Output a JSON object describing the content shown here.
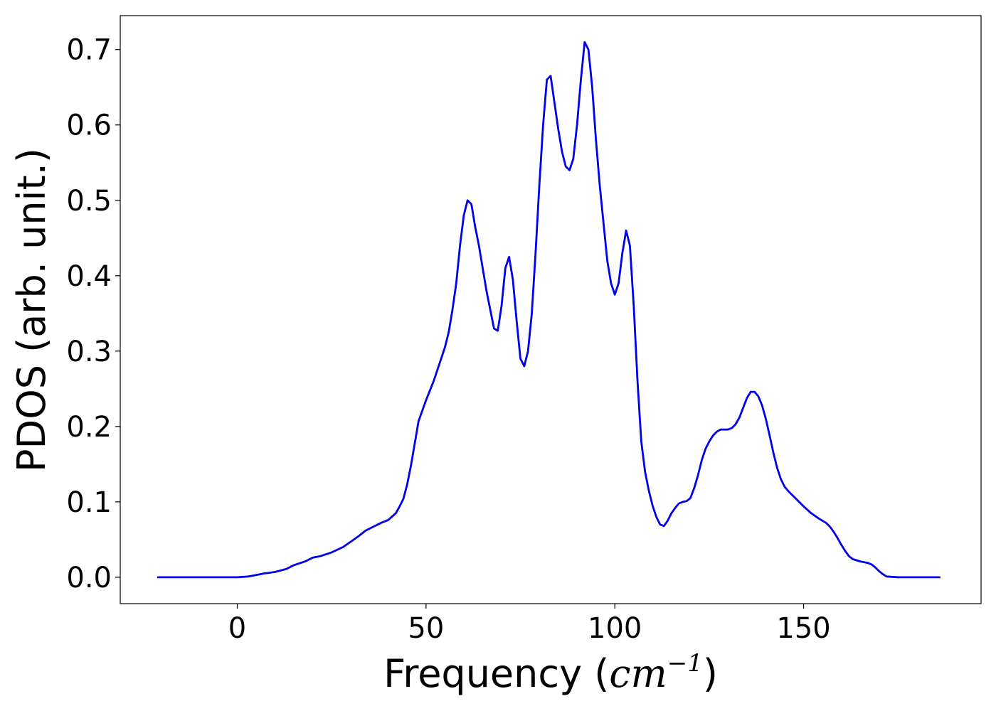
{
  "chart_data": {
    "type": "line",
    "title": "",
    "xlabel": "Frequency (cm⁻¹)",
    "xlabel_parts": {
      "prefix": "Frequency (",
      "math_base": "cm",
      "math_sup": "−1",
      "suffix": ")"
    },
    "ylabel": "PDOS (arb. unit.)",
    "xlim": [
      -31,
      197
    ],
    "ylim": [
      -0.035,
      0.745
    ],
    "xticks": [
      0,
      50,
      100,
      150
    ],
    "xtick_labels": [
      "0",
      "50",
      "100",
      "150"
    ],
    "yticks": [
      0.0,
      0.1,
      0.2,
      0.3,
      0.4,
      0.5,
      0.6,
      0.7
    ],
    "ytick_labels": [
      "0.0",
      "0.1",
      "0.2",
      "0.3",
      "0.4",
      "0.5",
      "0.6",
      "0.7"
    ],
    "grid": false,
    "legend": "none",
    "series": [
      {
        "color": "#0000ee",
        "x": [
          -21,
          0,
          3,
          5,
          7,
          10,
          13,
          15,
          18,
          20,
          22,
          25,
          28,
          30,
          32,
          34,
          36,
          38,
          40,
          42,
          43,
          44,
          45,
          46,
          47,
          48,
          50,
          52,
          54,
          55,
          56,
          57,
          58,
          59,
          60,
          61,
          62,
          63,
          64,
          65,
          66,
          67,
          68,
          69,
          70,
          71,
          72,
          73,
          74,
          75,
          76,
          77,
          78,
          79,
          80,
          81,
          82,
          83,
          84,
          85,
          86,
          87,
          88,
          89,
          90,
          91,
          92,
          93,
          94,
          95,
          96,
          97,
          98,
          99,
          100,
          101,
          102,
          103,
          104,
          105,
          106,
          107,
          108,
          109,
          110,
          111,
          112,
          113,
          114,
          115,
          116,
          117,
          118,
          119,
          120,
          121,
          122,
          123,
          124,
          125,
          126,
          127,
          128,
          129,
          130,
          131,
          132,
          133,
          134,
          135,
          136,
          137,
          138,
          139,
          140,
          141,
          142,
          143,
          144,
          145,
          146,
          148,
          150,
          152,
          154,
          156,
          157,
          158,
          159,
          160,
          161,
          162,
          163,
          165,
          167,
          168,
          169,
          170,
          171,
          172,
          175,
          180,
          186
        ],
        "y": [
          0.0,
          0.0,
          0.001,
          0.003,
          0.005,
          0.007,
          0.011,
          0.016,
          0.021,
          0.026,
          0.028,
          0.033,
          0.04,
          0.047,
          0.054,
          0.062,
          0.067,
          0.072,
          0.076,
          0.085,
          0.094,
          0.104,
          0.123,
          0.148,
          0.177,
          0.207,
          0.235,
          0.26,
          0.29,
          0.305,
          0.325,
          0.355,
          0.39,
          0.44,
          0.48,
          0.5,
          0.495,
          0.465,
          0.44,
          0.41,
          0.38,
          0.355,
          0.33,
          0.327,
          0.36,
          0.41,
          0.425,
          0.395,
          0.34,
          0.29,
          0.28,
          0.3,
          0.35,
          0.43,
          0.52,
          0.6,
          0.66,
          0.665,
          0.63,
          0.595,
          0.565,
          0.545,
          0.54,
          0.555,
          0.6,
          0.66,
          0.71,
          0.7,
          0.65,
          0.58,
          0.52,
          0.47,
          0.42,
          0.39,
          0.375,
          0.39,
          0.43,
          0.46,
          0.44,
          0.36,
          0.26,
          0.18,
          0.14,
          0.115,
          0.095,
          0.08,
          0.07,
          0.068,
          0.075,
          0.085,
          0.092,
          0.098,
          0.1,
          0.101,
          0.105,
          0.118,
          0.135,
          0.155,
          0.17,
          0.18,
          0.188,
          0.193,
          0.196,
          0.196,
          0.196,
          0.198,
          0.203,
          0.212,
          0.225,
          0.238,
          0.246,
          0.246,
          0.24,
          0.228,
          0.21,
          0.188,
          0.165,
          0.145,
          0.13,
          0.12,
          0.114,
          0.104,
          0.094,
          0.085,
          0.078,
          0.072,
          0.067,
          0.06,
          0.052,
          0.043,
          0.035,
          0.028,
          0.024,
          0.021,
          0.019,
          0.017,
          0.013,
          0.008,
          0.004,
          0.001,
          0.0,
          0.0,
          0.0
        ]
      }
    ]
  }
}
